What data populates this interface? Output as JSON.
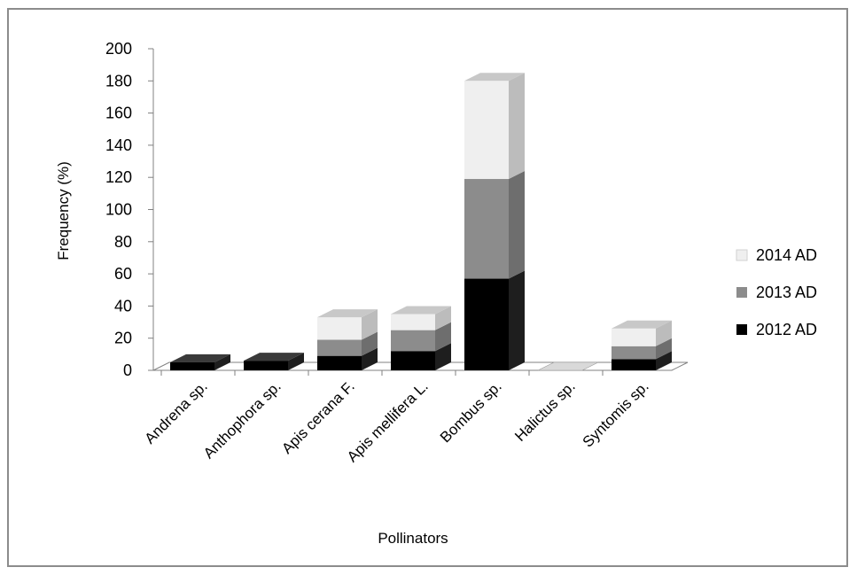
{
  "chart_data": {
    "type": "bar",
    "variant": "stacked-3d",
    "categories": [
      "Andrena sp.",
      "Anthophora sp.",
      "Apis cerana F.",
      "Apis mellifera L.",
      "Bombus sp.",
      "Halictus sp.",
      "Syntomis sp."
    ],
    "series": [
      {
        "name": "2012 AD",
        "values": [
          5,
          6,
          9,
          12,
          57,
          0,
          7
        ],
        "color": "#000000"
      },
      {
        "name": "2013 AD",
        "values": [
          0,
          0,
          10,
          13,
          62,
          0,
          8
        ],
        "color": "#8c8c8c"
      },
      {
        "name": "2014 AD",
        "values": [
          0,
          0,
          14,
          10,
          61,
          0,
          11
        ],
        "color": "#efefef"
      }
    ],
    "ylabel": "Frequency (%)",
    "xlabel": "Pollinators",
    "ylim": [
      0,
      200
    ],
    "yticks": [
      "0",
      "20",
      "40",
      "60",
      "80",
      "100",
      "120",
      "140",
      "160",
      "180",
      "200"
    ],
    "legend_position": "right",
    "grid": false
  }
}
